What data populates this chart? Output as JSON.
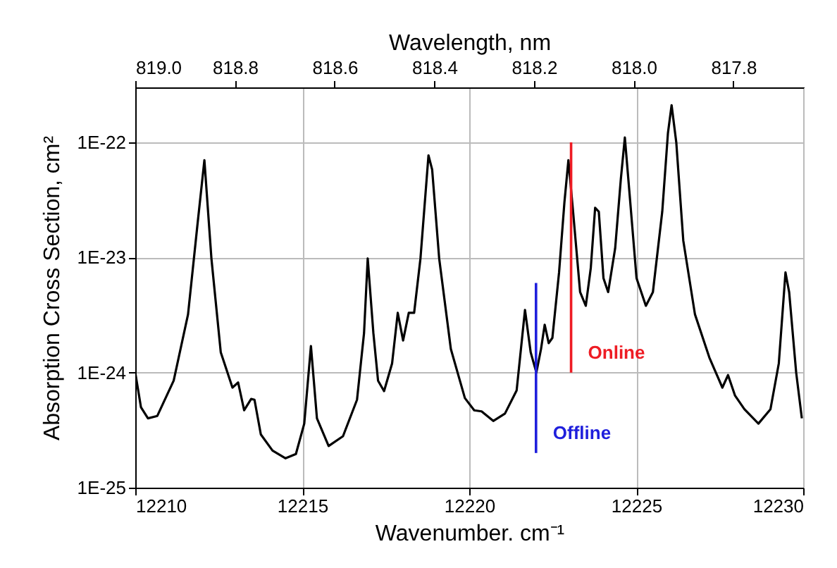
{
  "chart_data": {
    "type": "line",
    "xlabel": "Wavenumber. cm⁻¹",
    "ylabel": "Absorption Cross Section, cm²",
    "x2label": "Wavelength, nm",
    "xlim": [
      12210,
      12230
    ],
    "xticks": [
      12210,
      12215,
      12220,
      12225,
      12230
    ],
    "x2lim": [
      819.0,
      817.66
    ],
    "x2ticks": [
      {
        "value": 819.0,
        "label": "819.0"
      },
      818.8,
      818.6,
      818.4,
      818.2,
      {
        "value": 818.0,
        "label": "818.0"
      },
      817.8
    ],
    "ylim": [
      1e-25,
      3e-22
    ],
    "yticks": [
      {
        "value": 1e-25,
        "label": "1E-25"
      },
      {
        "value": 1e-24,
        "label": "1E-24"
      },
      {
        "value": 1e-23,
        "label": "1E-23"
      },
      {
        "value": 1e-22,
        "label": "1E-22"
      }
    ],
    "log": "y",
    "grid": true,
    "line_style": "solid",
    "marker": "none",
    "series": [
      {
        "color": "#000000",
        "x": [
          12210.0,
          12210.17,
          12210.38,
          12210.66,
          12211.15,
          12211.58,
          12211.86,
          12212.07,
          12212.28,
          12212.56,
          12212.91,
          12213.08,
          12213.26,
          12213.47,
          12213.57,
          12213.76,
          12214.11,
          12214.5,
          12214.81,
          12215.06,
          12215.26,
          12215.44,
          12215.79,
          12216.22,
          12216.64,
          12216.85,
          12216.96,
          12217.13,
          12217.27,
          12217.45,
          12217.69,
          12217.86,
          12218.02,
          12218.19,
          12218.35,
          12218.54,
          12218.78,
          12218.89,
          12219.1,
          12219.45,
          12219.87,
          12220.15,
          12220.37,
          12220.72,
          12221.07,
          12221.42,
          12221.67,
          12221.84,
          12222.01,
          12222.15,
          12222.26,
          12222.38,
          12222.49,
          12222.69,
          12222.85,
          12222.97,
          12223.11,
          12223.32,
          12223.49,
          12223.64,
          12223.77,
          12223.88,
          12224.02,
          12224.16,
          12224.37,
          12224.54,
          12224.66,
          12224.8,
          12225.01,
          12225.29,
          12225.5,
          12225.78,
          12225.95,
          12226.06,
          12226.2,
          12226.41,
          12226.76,
          12227.19,
          12227.58,
          12227.75,
          12227.96,
          12228.24,
          12228.66,
          12229.02,
          12229.27,
          12229.47,
          12229.58,
          12229.79,
          12229.96
        ],
        "values": [
          1e-24,
          5e-25,
          4e-25,
          4.2e-25,
          8.5e-25,
          3.2e-24,
          1.9e-23,
          7e-23,
          9.8e-24,
          1.5e-24,
          7.4e-25,
          8.2e-25,
          4.7e-25,
          5.9e-25,
          5.8e-25,
          2.9e-25,
          2.1e-25,
          1.8e-25,
          1.96e-25,
          3.6e-25,
          1.7e-24,
          4e-25,
          2.3e-25,
          2.8e-25,
          5.8e-25,
          2.2e-24,
          9.8e-24,
          2.2e-24,
          8.5e-25,
          6.9e-25,
          1.2e-24,
          3.3e-24,
          1.9e-24,
          3.3e-24,
          3.3e-24,
          9.8e-24,
          7.7e-23,
          5.8e-23,
          9.8e-24,
          1.6e-24,
          6e-25,
          4.7e-25,
          4.6e-25,
          3.8e-25,
          4.4e-25,
          7e-25,
          3.5e-24,
          1.5e-24,
          1e-24,
          1.6e-24,
          2.6e-24,
          1.8e-24,
          2e-24,
          7.4e-24,
          3e-23,
          7e-23,
          2.5e-23,
          5e-24,
          3.8e-24,
          8.1e-24,
          2.7e-23,
          2.5e-23,
          6.6e-24,
          5e-24,
          1.2e-23,
          4.8e-23,
          1.1e-22,
          3.6e-23,
          6.6e-24,
          3.8e-24,
          5e-24,
          2.5e-23,
          1.2e-22,
          2.1e-22,
          1e-22,
          1.4e-23,
          3.2e-24,
          1.35e-24,
          7.4e-25,
          9.5e-25,
          6.3e-25,
          4.8e-25,
          3.6e-25,
          4.8e-25,
          1.2e-24,
          7.4e-24,
          5e-24,
          1e-24,
          4e-25
        ]
      },
      {
        "name": "Online",
        "color": "#ee1c24",
        "x": [
          12223.05,
          12223.05
        ],
        "values": [
          1e-22,
          1e-24
        ]
      },
      {
        "name": "Offline",
        "color": "#1f1fdc",
        "x": [
          12222.0,
          12222.0
        ],
        "values": [
          6e-24,
          2e-25
        ]
      }
    ]
  }
}
